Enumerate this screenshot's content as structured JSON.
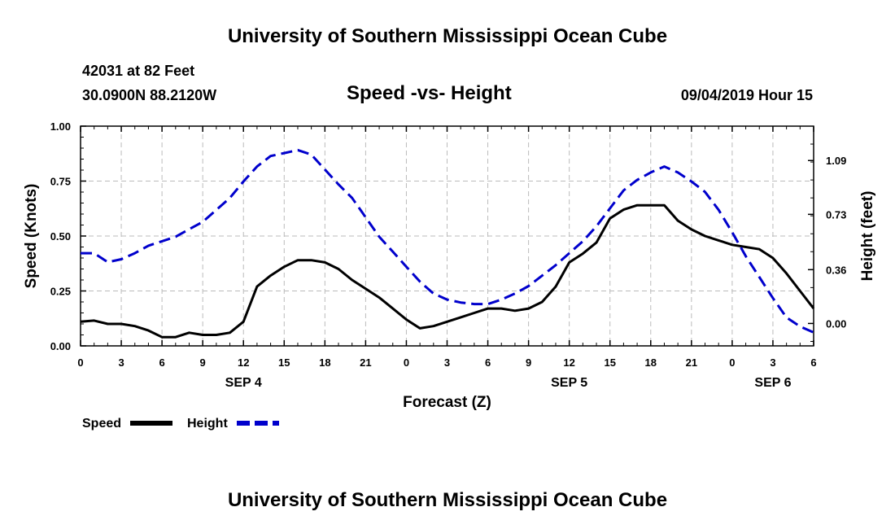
{
  "header": {
    "top_title": "University of Southern Mississippi Ocean Cube",
    "station": "42031 at 82 Feet",
    "coords": "30.0900N 88.2120W",
    "chart_title": "Speed -vs- Height",
    "timestamp": "09/04/2019 Hour 15",
    "bottom_title": "University of Southern Mississippi Ocean Cube"
  },
  "colors": {
    "speed": "#000000",
    "height": "#0000cc",
    "grid": "#bbbbbb"
  },
  "chart_data": {
    "type": "line",
    "title": "Speed -vs- Height",
    "xlabel": "Forecast (Z)",
    "ylabel": "Speed (Knots)",
    "y2label": "Height (feet)",
    "xlim": [
      0,
      54
    ],
    "x_ticks": [
      0,
      3,
      6,
      9,
      12,
      15,
      18,
      21,
      24,
      27,
      30,
      33,
      36,
      39,
      42,
      45,
      48,
      51,
      54
    ],
    "x_tick_labels": [
      "0",
      "3",
      "6",
      "9",
      "12",
      "15",
      "18",
      "21",
      "0",
      "3",
      "6",
      "9",
      "12",
      "15",
      "18",
      "21",
      "0",
      "3",
      "6"
    ],
    "date_labels": [
      {
        "x": 12,
        "label": "SEP 4"
      },
      {
        "x": 36,
        "label": "SEP 5"
      },
      {
        "x": 51,
        "label": "SEP 6"
      }
    ],
    "ylim": [
      0,
      1.0
    ],
    "y_ticks": [
      0.0,
      0.25,
      0.5,
      0.75,
      1.0
    ],
    "y_tick_labels": [
      "0.00",
      "0.25",
      "0.50",
      "0.75",
      "1.00"
    ],
    "y2lim": [
      -0.15,
      1.32
    ],
    "y2_ticks": [
      0.0,
      0.36,
      0.73,
      1.09
    ],
    "y2_tick_labels": [
      "0.00",
      "0.36",
      "0.73",
      "1.09"
    ],
    "grid": true,
    "legend": [
      {
        "name": "Speed",
        "style": "solid"
      },
      {
        "name": "Height",
        "style": "dashed"
      }
    ],
    "series": [
      {
        "name": "Speed",
        "axis": "left",
        "x": [
          0,
          1,
          2,
          3,
          4,
          5,
          6,
          7,
          8,
          9,
          10,
          11,
          12,
          13,
          14,
          15,
          16,
          17,
          18,
          19,
          20,
          21,
          22,
          23,
          24,
          25,
          26,
          27,
          28,
          29,
          30,
          31,
          32,
          33,
          34,
          35,
          36,
          37,
          38,
          39,
          40,
          41,
          42,
          43,
          44,
          45,
          46,
          47,
          48,
          49,
          50,
          51,
          52,
          53,
          54
        ],
        "values": [
          0.11,
          0.115,
          0.1,
          0.1,
          0.09,
          0.07,
          0.04,
          0.04,
          0.06,
          0.05,
          0.05,
          0.06,
          0.11,
          0.27,
          0.32,
          0.36,
          0.39,
          0.39,
          0.38,
          0.35,
          0.3,
          0.26,
          0.22,
          0.17,
          0.12,
          0.08,
          0.09,
          0.11,
          0.13,
          0.15,
          0.17,
          0.17,
          0.16,
          0.17,
          0.2,
          0.27,
          0.38,
          0.42,
          0.47,
          0.58,
          0.62,
          0.64,
          0.64,
          0.64,
          0.57,
          0.53,
          0.5,
          0.48,
          0.46,
          0.45,
          0.44,
          0.4,
          0.33,
          0.25,
          0.17
        ]
      },
      {
        "name": "Height",
        "axis": "right",
        "x": [
          0,
          1,
          2,
          3,
          4,
          5,
          6,
          7,
          8,
          9,
          10,
          11,
          12,
          13,
          14,
          15,
          16,
          17,
          18,
          19,
          20,
          21,
          22,
          23,
          24,
          25,
          26,
          27,
          28,
          29,
          30,
          31,
          32,
          33,
          34,
          35,
          36,
          37,
          38,
          39,
          40,
          41,
          42,
          43,
          44,
          45,
          46,
          47,
          48,
          49,
          50,
          51,
          52,
          53,
          54
        ],
        "values": [
          0.47,
          0.47,
          0.41,
          0.43,
          0.47,
          0.52,
          0.55,
          0.58,
          0.63,
          0.68,
          0.76,
          0.84,
          0.95,
          1.05,
          1.12,
          1.14,
          1.16,
          1.13,
          1.03,
          0.93,
          0.84,
          0.71,
          0.58,
          0.48,
          0.38,
          0.28,
          0.2,
          0.16,
          0.14,
          0.13,
          0.13,
          0.16,
          0.2,
          0.25,
          0.32,
          0.39,
          0.47,
          0.55,
          0.65,
          0.77,
          0.89,
          0.96,
          1.01,
          1.05,
          1.01,
          0.95,
          0.88,
          0.76,
          0.61,
          0.45,
          0.31,
          0.17,
          0.04,
          -0.02,
          -0.06
        ]
      }
    ]
  }
}
